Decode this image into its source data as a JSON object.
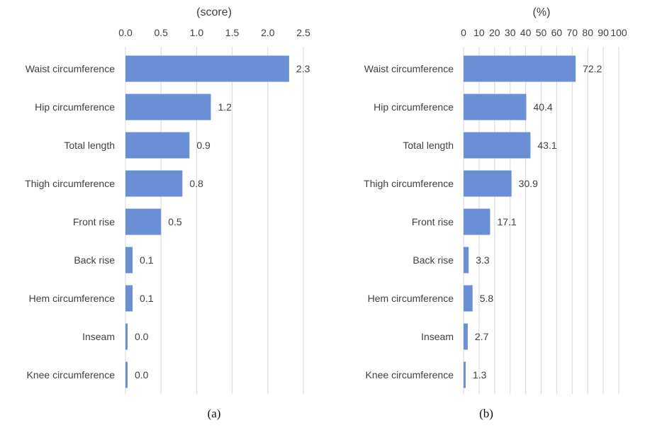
{
  "colors": {
    "bar": "#6b8fd5",
    "grid": "#d9d9d9",
    "text": "#404040"
  },
  "chart_data": [
    {
      "type": "bar",
      "orientation": "horizontal",
      "title": "(score)",
      "caption": "(a)",
      "categories": [
        "Waist circumference",
        "Hip circumference",
        "Total length",
        "Thigh circumference",
        "Front rise",
        "Back rise",
        "Hem circumference",
        "Inseam",
        "Knee circumference"
      ],
      "values": [
        2.3,
        1.2,
        0.9,
        0.8,
        0.5,
        0.1,
        0.1,
        0.0,
        0.0
      ],
      "data_labels": [
        "2.3",
        "1.2",
        "0.9",
        "0.8",
        "0.5",
        "0.1",
        "0.1",
        "0.0",
        "0.0"
      ],
      "xlim": [
        0,
        2.5
      ],
      "xticks": [
        "0.0",
        "0.5",
        "1.0",
        "1.5",
        "2.0",
        "2.5"
      ],
      "tick_values": [
        0,
        0.5,
        1.0,
        1.5,
        2.0,
        2.5
      ],
      "axis_position": "top",
      "grid": "vertical"
    },
    {
      "type": "bar",
      "orientation": "horizontal",
      "title": "(%)",
      "caption": "(b)",
      "categories": [
        "Waist circumference",
        "Hip circumference",
        "Total length",
        "Thigh circumference",
        "Front rise",
        "Back rise",
        "Hem circumference",
        "Inseam",
        "Knee circumference"
      ],
      "values": [
        72.2,
        40.4,
        43.1,
        30.9,
        17.1,
        3.3,
        5.8,
        2.7,
        1.3
      ],
      "data_labels": [
        "72.2",
        "40.4",
        "43.1",
        "30.9",
        "17.1",
        "3.3",
        "5.8",
        "2.7",
        "1.3"
      ],
      "xlim": [
        0,
        100
      ],
      "xticks": [
        "0",
        "10",
        "20",
        "30",
        "40",
        "50",
        "60",
        "70",
        "80",
        "90",
        "100"
      ],
      "tick_values": [
        0,
        10,
        20,
        30,
        40,
        50,
        60,
        70,
        80,
        90,
        100
      ],
      "axis_position": "top",
      "grid": "vertical"
    }
  ]
}
